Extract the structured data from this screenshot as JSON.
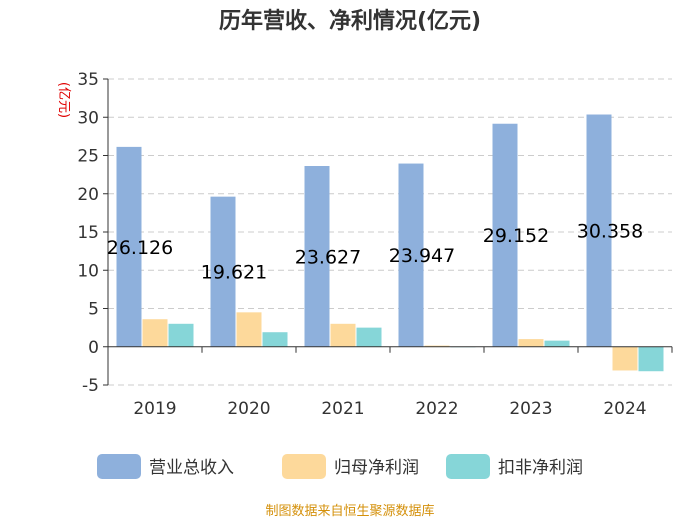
{
  "chart_data": {
    "type": "bar",
    "title": "历年营收、净利情况(亿元)",
    "ylabel": "(亿元)",
    "categories": [
      "2019",
      "2020",
      "2021",
      "2022",
      "2023",
      "2024"
    ],
    "ylim": [
      -5,
      35
    ],
    "yticks": [
      -5,
      0,
      5,
      10,
      15,
      20,
      25,
      30,
      35
    ],
    "grid": true,
    "legend_position": "bottom",
    "series": [
      {
        "name": "营业总收入",
        "color": "#8eb0dc",
        "values": [
          26.126,
          19.621,
          23.627,
          23.947,
          29.152,
          30.358
        ]
      },
      {
        "name": "归母净利润",
        "color": "#fdd99b",
        "values": [
          3.6,
          4.5,
          3.0,
          0.15,
          1.0,
          -3.1
        ]
      },
      {
        "name": "扣非净利润",
        "color": "#86d6d8",
        "values": [
          3.0,
          1.9,
          2.5,
          0.0,
          0.8,
          -3.2
        ]
      }
    ],
    "data_labels": [
      "26.126",
      "19.621",
      "23.627",
      "23.947",
      "29.152",
      "30.358"
    ]
  },
  "source": "制图数据来自恒生聚源数据库"
}
